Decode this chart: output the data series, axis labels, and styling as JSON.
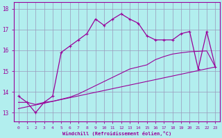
{
  "xlabel": "Windchill (Refroidissement éolien,°C)",
  "ylabel": "",
  "xlim": [
    -0.5,
    23.5
  ],
  "ylim": [
    12.6,
    18.3
  ],
  "xticks": [
    0,
    1,
    2,
    3,
    4,
    5,
    6,
    7,
    8,
    9,
    10,
    11,
    12,
    13,
    14,
    15,
    16,
    17,
    18,
    19,
    20,
    21,
    22,
    23
  ],
  "yticks": [
    13,
    14,
    15,
    16,
    17,
    18
  ],
  "background_color": "#b2eeee",
  "line_color": "#990099",
  "grid_color": "#9999bb",
  "line1_x": [
    0,
    1,
    2,
    3,
    4,
    5,
    6,
    7,
    8,
    9,
    10,
    11,
    12,
    13,
    14,
    15,
    16,
    17,
    18,
    19,
    20,
    21,
    22,
    23
  ],
  "line1_y": [
    13.8,
    13.5,
    13.0,
    13.5,
    13.8,
    15.9,
    16.2,
    16.5,
    16.8,
    17.5,
    17.2,
    17.5,
    17.75,
    17.5,
    17.3,
    16.7,
    16.5,
    16.5,
    16.5,
    16.8,
    16.9,
    15.1,
    16.9,
    15.2
  ],
  "line2_x": [
    0,
    23
  ],
  "line2_y": [
    13.2,
    15.2
  ],
  "line3_x": [
    0,
    1,
    2,
    3,
    4,
    5,
    6,
    7,
    8,
    9,
    10,
    11,
    12,
    13,
    14,
    15,
    16,
    17,
    18,
    19,
    20,
    21,
    22,
    23
  ],
  "line3_y": [
    13.5,
    13.5,
    13.4,
    13.5,
    13.55,
    13.65,
    13.75,
    13.9,
    14.1,
    14.3,
    14.5,
    14.7,
    14.9,
    15.1,
    15.2,
    15.3,
    15.55,
    15.7,
    15.82,
    15.88,
    15.93,
    15.95,
    15.97,
    15.2
  ]
}
